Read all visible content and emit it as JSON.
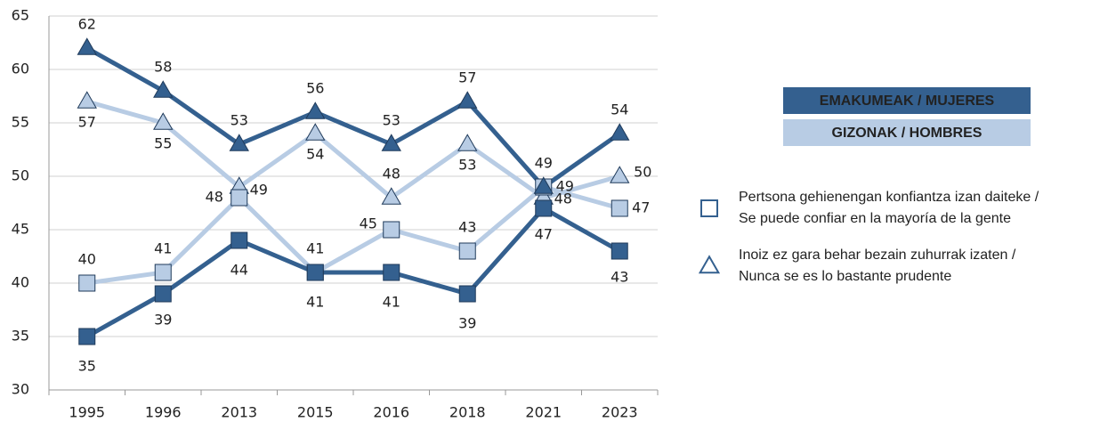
{
  "chart_data": {
    "type": "line",
    "categories": [
      "1995",
      "1996",
      "2013",
      "2015",
      "2016",
      "2018",
      "2021",
      "2023"
    ],
    "series": [
      {
        "color": "#b8cce4",
        "marker": "triangle",
        "values": [
          57,
          55,
          49,
          54,
          48,
          53,
          48,
          50
        ]
      },
      {
        "color": "#b8cce4",
        "marker": "square",
        "values": [
          40,
          41,
          48,
          41,
          45,
          43,
          49,
          47
        ]
      },
      {
        "color": "#34608f",
        "marker": "triangle",
        "values": [
          62,
          58,
          53,
          56,
          53,
          57,
          49,
          54
        ]
      },
      {
        "color": "#34608f",
        "marker": "square",
        "values": [
          35,
          39,
          44,
          41,
          41,
          39,
          47,
          43
        ]
      }
    ],
    "ylim": [
      30,
      65
    ],
    "yticks": [
      30,
      35,
      40,
      45,
      50,
      55,
      60,
      65
    ],
    "grid": true,
    "legend": {
      "groups": [
        {
          "label": "EMAKUMEAK / MUJERES",
          "color": "#34608f",
          "text_color": "#ffffff"
        },
        {
          "label": "GIZONAK / HOMBRES",
          "color": "#b8cce4",
          "text_color": "#1f3a5a"
        }
      ],
      "markers": [
        {
          "marker": "square",
          "lines": [
            "Pertsona gehienengan konfiantza izan daiteke /",
            "Se puede confiar en la mayoría de la gente"
          ]
        },
        {
          "marker": "triangle",
          "lines": [
            "Inoiz ez gara behar bezain zuhurrak izaten /",
            "Nunca se es lo bastante prudente"
          ]
        }
      ]
    }
  }
}
